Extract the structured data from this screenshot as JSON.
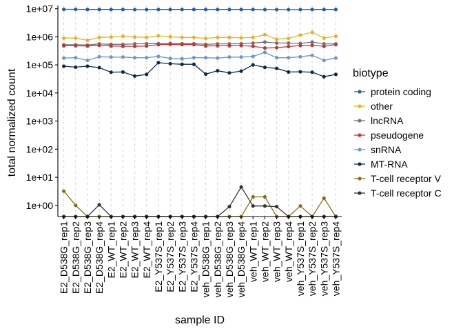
{
  "chart_data": {
    "type": "line",
    "title": "",
    "xlabel": "sample ID",
    "ylabel": "total normalized count",
    "y_scale": "log10",
    "y_ticks": [
      "1e+00",
      "1e+01",
      "1e+02",
      "1e+03",
      "1e+04",
      "1e+05",
      "1e+06",
      "1e+07"
    ],
    "y_tick_values": [
      1,
      10,
      100,
      1000,
      10000,
      100000,
      1000000,
      10000000
    ],
    "grid": "vertical dashed lines at each sample",
    "legend_title": "biotype",
    "legend_placement": "right",
    "categories": [
      "E2_D538G_rep1",
      "E2_D538G_rep2",
      "E2_D538G_rep3",
      "E2_D538G_rep4",
      "E2_WT_rep1",
      "E2_WT_rep2",
      "E2_WT_rep3",
      "E2_WT_rep4",
      "E2_Y537S_rep1",
      "E2_Y537S_rep2",
      "E2_Y537S_rep3",
      "E2_Y537S_rep4",
      "veh_D538G_rep1",
      "veh_D538G_rep2",
      "veh_D538G_rep3",
      "veh_D538G_rep4",
      "veh_WT_rep1",
      "veh_WT_rep2",
      "veh_WT_rep3",
      "veh_WT_rep4",
      "veh_Y537S_rep1",
      "veh_Y537S_rep2",
      "veh_Y537S_rep3",
      "veh_Y537S_rep4"
    ],
    "series": [
      {
        "name": "protein coding",
        "color": "#1f5faa",
        "values": [
          9500000,
          9500000,
          9400000,
          9400000,
          9400000,
          9400000,
          9300000,
          9300000,
          9400000,
          9400000,
          9400000,
          9400000,
          9400000,
          9400000,
          9400000,
          9400000,
          9400000,
          9300000,
          9300000,
          9300000,
          9300000,
          9400000,
          9400000,
          9400000
        ]
      },
      {
        "name": "other",
        "color": "#e6b422",
        "values": [
          900000,
          900000,
          750000,
          950000,
          980000,
          1050000,
          980000,
          950000,
          1080000,
          1000000,
          950000,
          950000,
          880000,
          950000,
          950000,
          920000,
          950000,
          1200000,
          820000,
          880000,
          1150000,
          1450000,
          900000,
          1050000
        ]
      },
      {
        "name": "lncRNA",
        "color": "#737373",
        "values": [
          520000,
          520000,
          510000,
          560000,
          540000,
          540000,
          560000,
          570000,
          570000,
          580000,
          570000,
          570000,
          540000,
          560000,
          560000,
          570000,
          600000,
          650000,
          600000,
          600000,
          580000,
          650000,
          560000,
          560000
        ]
      },
      {
        "name": "pseudogene",
        "color": "#c83232",
        "values": [
          480000,
          480000,
          470000,
          500000,
          470000,
          460000,
          460000,
          470000,
          530000,
          540000,
          530000,
          530000,
          470000,
          480000,
          480000,
          490000,
          460000,
          400000,
          410000,
          450000,
          490000,
          500000,
          460000,
          530000
        ]
      },
      {
        "name": "snRNA",
        "color": "#6a96d2",
        "values": [
          175000,
          180000,
          145000,
          195000,
          190000,
          190000,
          180000,
          180000,
          200000,
          170000,
          165000,
          180000,
          180000,
          175000,
          190000,
          190000,
          200000,
          280000,
          180000,
          180000,
          195000,
          220000,
          145000,
          175000
        ]
      },
      {
        "name": "MT-RNA",
        "color": "#0f2a4a",
        "values": [
          90000,
          83000,
          90000,
          80000,
          55000,
          56000,
          40000,
          46000,
          120000,
          110000,
          105000,
          105000,
          47000,
          62000,
          52000,
          60000,
          100000,
          82000,
          75000,
          56000,
          57000,
          55000,
          38000,
          46000
        ]
      },
      {
        "name": "T-cell receptor V",
        "color": "#8c6c0f",
        "values": [
          3.2,
          1.0,
          0.4,
          0.4,
          0.4,
          0.4,
          0.4,
          0.4,
          0.4,
          0.4,
          0.4,
          0.4,
          0.4,
          0.4,
          0.4,
          0.4,
          2.0,
          2.0,
          0.4,
          0.4,
          0.95,
          0.4,
          1.8,
          0.4
        ]
      },
      {
        "name": "T-cell receptor C",
        "color": "#333333",
        "values": [
          0.4,
          0.4,
          0.4,
          1.05,
          0.4,
          0.4,
          0.4,
          0.4,
          0.4,
          0.4,
          0.4,
          0.4,
          0.4,
          0.4,
          0.9,
          4.5,
          0.95,
          0.95,
          0.9,
          0.4,
          0.4,
          0.4,
          0.4,
          0.4
        ]
      }
    ]
  }
}
